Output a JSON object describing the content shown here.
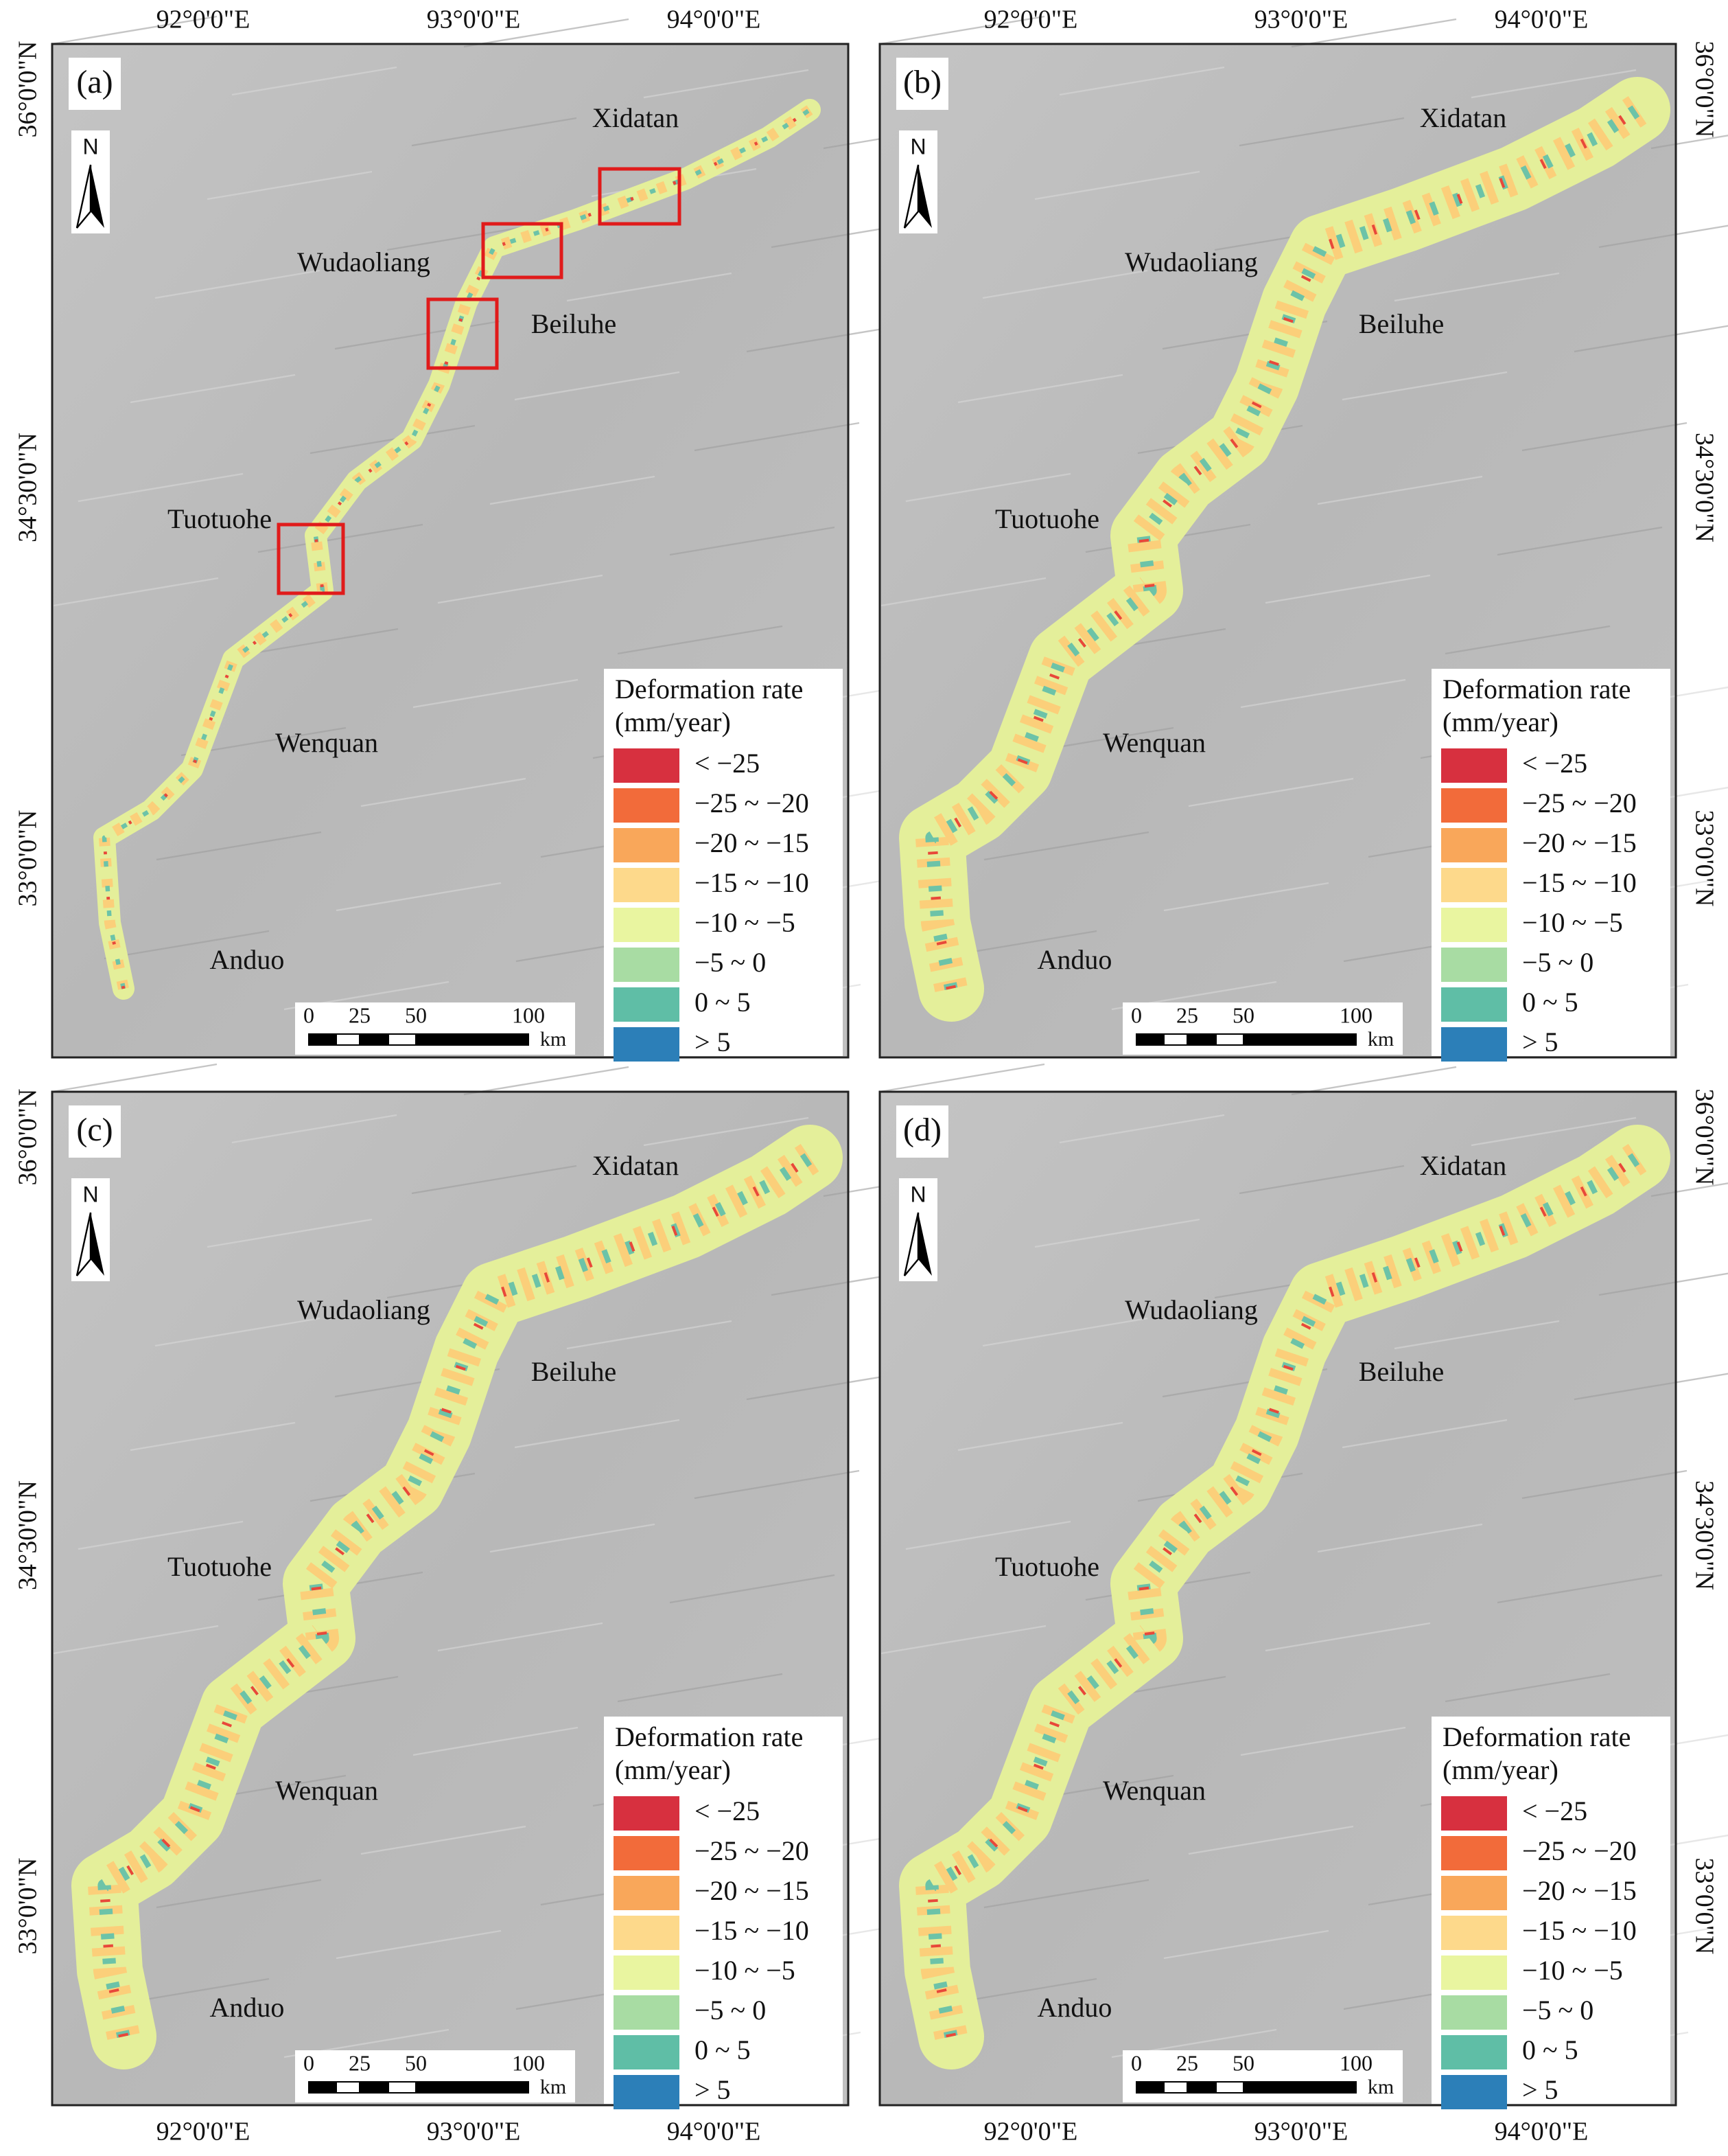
{
  "panels": [
    {
      "label": "(a)"
    },
    {
      "label": "(b)"
    },
    {
      "label": "(c)"
    },
    {
      "label": "(d)"
    }
  ],
  "longitude_labels": [
    "92°0'0\"E",
    "93°0'0\"E",
    "94°0'0\"E"
  ],
  "latitude_labels": [
    "36°0'0\"N",
    "34°30'0\"N",
    "33°0'0\"N"
  ],
  "place_names": [
    "Xidatan",
    "Wudaoliang",
    "Beiluhe",
    "Tuotuohe",
    "Wenquan",
    "Anduo"
  ],
  "north_label": "N",
  "legend": {
    "title": [
      "Deformation rate",
      "(mm/year)"
    ],
    "items": [
      {
        "label": "< −25",
        "color": "#d7303f"
      },
      {
        "label": "−25 ~ −20",
        "color": "#f26b3a"
      },
      {
        "label": "−20 ~ −15",
        "color": "#f9a75a"
      },
      {
        "label": "−15 ~ −10",
        "color": "#fdd98b"
      },
      {
        "label": "−10 ~ −5",
        "color": "#e9f5a0"
      },
      {
        "label": "−5 ~ 0",
        "color": "#a8dca3"
      },
      {
        "label": "0 ~ 5",
        "color": "#5fbea6"
      },
      {
        "label": "> 5",
        "color": "#2c7fb8"
      }
    ]
  },
  "scale_bar": {
    "labels": [
      "0",
      "25",
      "50",
      "100"
    ],
    "unit": "km"
  }
}
